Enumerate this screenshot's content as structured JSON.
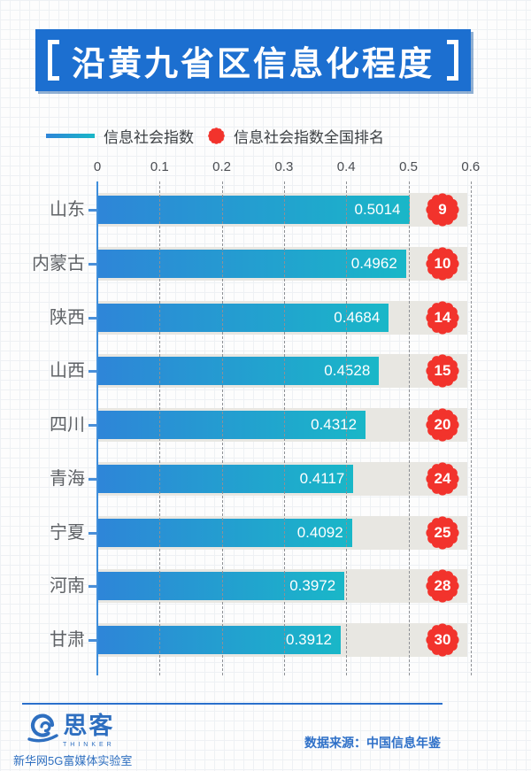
{
  "header": {
    "title": "沿黄九省区信息化程度"
  },
  "legend": {
    "bar_label": "信息社会指数",
    "rank_label": "信息社会指数全国排名"
  },
  "chart_data": {
    "type": "bar",
    "orientation": "horizontal",
    "title": "沿黄九省区信息化程度",
    "categories": [
      "山东",
      "内蒙古",
      "陕西",
      "山西",
      "四川",
      "青海",
      "宁夏",
      "河南",
      "甘肃"
    ],
    "series": [
      {
        "name": "信息社会指数",
        "values": [
          0.5014,
          0.4962,
          0.4684,
          0.4528,
          0.4312,
          0.4117,
          0.4092,
          0.3972,
          0.3912
        ]
      },
      {
        "name": "信息社会指数全国排名",
        "values": [
          9,
          10,
          14,
          15,
          20,
          24,
          25,
          28,
          30
        ]
      }
    ],
    "xticks": [
      "0",
      "0.1",
      "0.2",
      "0.3",
      "0.4",
      "0.5",
      "0.6"
    ],
    "xlim": [
      0,
      0.6
    ],
    "grid": "vertical-dashed",
    "legend_position": "top-left",
    "bar_gradient": [
      "#2e85d8",
      "#19b7c8"
    ],
    "rank_badge_color": "#f2332c",
    "track_color": "#e8e7e2"
  },
  "footer": {
    "brand_name": "思客",
    "brand_sub": "THINKER",
    "brand_org": "新华网5G富媒体实验室",
    "source": "数据来源：中国信息年鉴"
  },
  "colors": {
    "banner_blue": "#1c6fd0",
    "axis_blue": "#3f8edb",
    "footer_blue": "#2e6fc0"
  }
}
